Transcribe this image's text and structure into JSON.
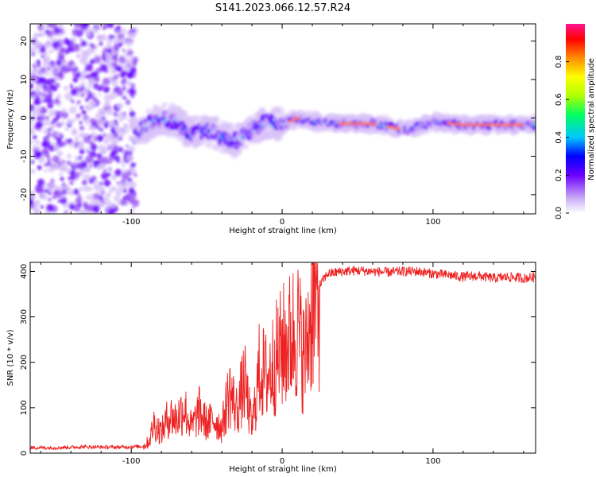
{
  "title": "S141.2023.066.12.57.R24",
  "chart_data": [
    {
      "type": "heatmap",
      "xlabel": "Height of straight line (km)",
      "ylabel": "Frequency (Hz)",
      "xlim": [
        -167,
        168
      ],
      "ylim": [
        -25,
        24.5
      ],
      "xticks": [
        -100,
        0,
        100
      ],
      "yticks": [
        -20,
        -10,
        0,
        10,
        20
      ],
      "colorbar": {
        "label": "Normalized spectral amplitude",
        "range": [
          0,
          1
        ],
        "ticks": [
          "0.0",
          "0.2",
          "0.4",
          "0.6",
          "0.8"
        ],
        "colors": [
          "#ffffff",
          "#c9a9f5",
          "#6a00ff",
          "#0000ff",
          "#00c8ff",
          "#00ff60",
          "#b0ff00",
          "#ffff00",
          "#ff8c00",
          "#ff0000",
          "#ff1490"
        ]
      },
      "ridge": {
        "description_free": true,
        "x": [
          -97,
          -90,
          -80,
          -70,
          -60,
          -50,
          -40,
          -30,
          -20,
          -10,
          0,
          10,
          20,
          40,
          60,
          80,
          90,
          100,
          120,
          140,
          168
        ],
        "y": [
          -5,
          -2,
          0,
          -1,
          -4,
          -3,
          -5,
          -6,
          -3,
          -1,
          -2,
          0,
          -1,
          -1.5,
          -1.5,
          -3,
          -2.5,
          -1,
          -1.8,
          -1.8,
          -1.8
        ]
      }
    },
    {
      "type": "line",
      "xlabel": "Height of straight line (km)",
      "ylabel": "SNR (10 * v/v)",
      "xlim": [
        -167,
        168
      ],
      "ylim": [
        0,
        420
      ],
      "xticks": [
        -100,
        0,
        100
      ],
      "yticks": [
        0,
        100,
        200,
        300,
        400
      ],
      "line_color": "#ee2222",
      "series": [
        {
          "x": [
            -167,
            -150,
            -130,
            -110,
            -92,
            -88,
            -85,
            -80,
            -75,
            -70,
            -65,
            -60,
            -55,
            -50,
            -45,
            -40,
            -35,
            -30,
            -25,
            -20,
            -15,
            -10,
            -5,
            0,
            5,
            10,
            15,
            20,
            25,
            30,
            40,
            50,
            60,
            70,
            80,
            90,
            100,
            110,
            120,
            130,
            140,
            150,
            160,
            168
          ],
          "y": [
            12,
            12,
            14,
            13,
            15,
            30,
            70,
            50,
            90,
            80,
            110,
            60,
            100,
            70,
            80,
            60,
            150,
            100,
            170,
            60,
            200,
            180,
            220,
            250,
            270,
            300,
            220,
            360,
            370,
            395,
            400,
            402,
            400,
            398,
            400,
            400,
            395,
            392,
            388,
            390,
            385,
            388,
            385,
            388
          ]
        }
      ]
    }
  ]
}
